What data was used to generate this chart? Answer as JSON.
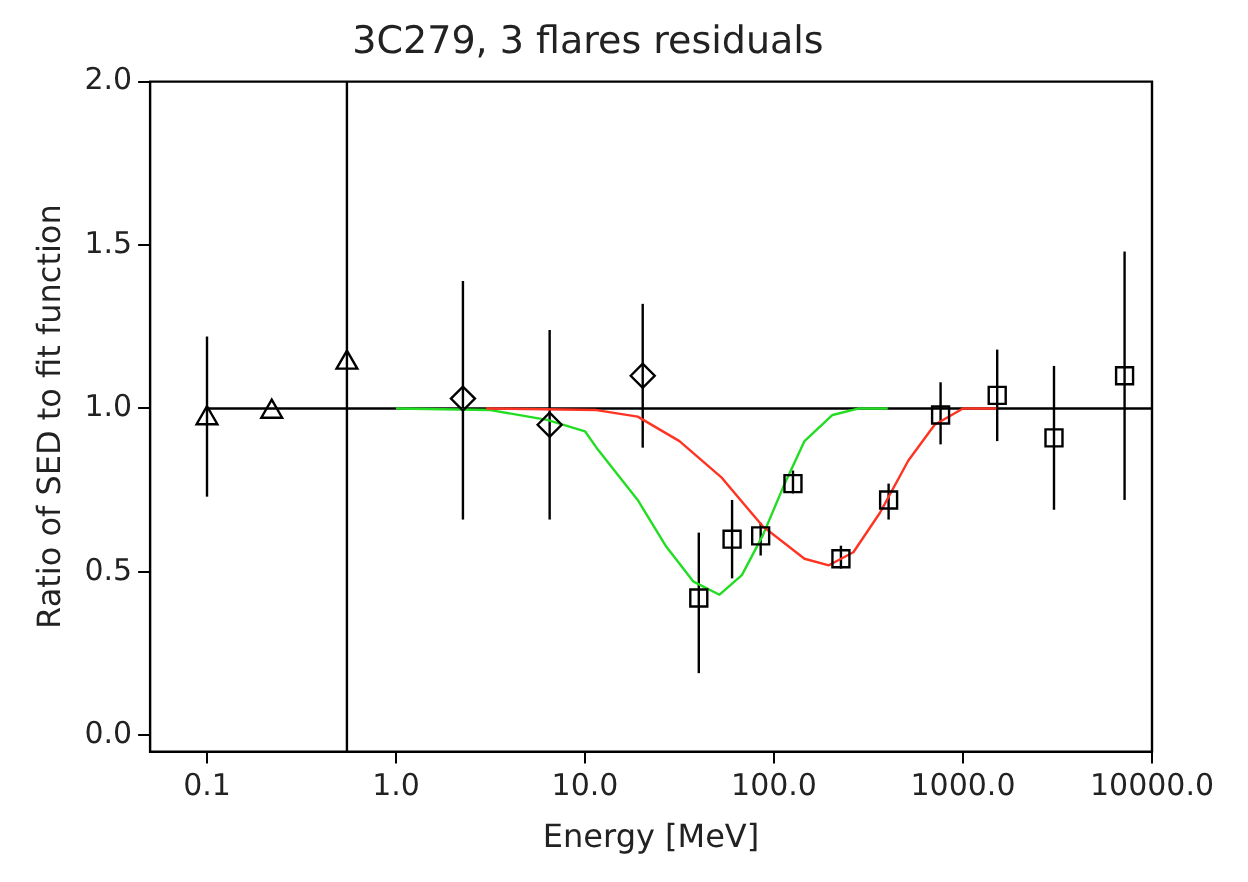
{
  "chart_data": {
    "type": "scatter",
    "title": "3C279, 3 flares residuals",
    "xlabel": "Energy [MeV]",
    "ylabel": "Ratio of SED to fit function",
    "log": "x",
    "grid": false,
    "legend": false,
    "xlim": [
      0.05,
      10000
    ],
    "xticks": [
      0.1,
      {
        "value": 1,
        "label": "1.0"
      },
      {
        "value": 10,
        "label": "10.0"
      },
      {
        "value": 100,
        "label": "100.0"
      },
      {
        "value": 1000,
        "label": "1000.0"
      },
      {
        "value": 10000,
        "label": "10000.0"
      }
    ],
    "ylim": [
      -0.05,
      2.0
    ],
    "yticks": [
      {
        "value": 0,
        "label": "0.0"
      },
      0.5,
      {
        "value": 1,
        "label": "1.0"
      },
      1.5,
      {
        "value": 2,
        "label": "2.0"
      }
    ],
    "series": [
      {
        "type": "line",
        "color": "#000000",
        "marker": "none",
        "line_style": "solid",
        "x": [
          0.1,
          10000
        ],
        "values": [
          1.0,
          1.0
        ]
      },
      {
        "type": "line",
        "color": "#22dd22",
        "marker": "none",
        "line_style": "solid",
        "x": [
          1,
          3.16,
          6.3,
          10,
          11.5,
          19,
          26.7,
          37.5,
          51.5,
          67.6,
          87,
          112,
          145,
          204,
          282,
          400
        ],
        "values": [
          1.0,
          0.995,
          0.965,
          0.93,
          0.88,
          0.72,
          0.58,
          0.47,
          0.43,
          0.49,
          0.61,
          0.76,
          0.9,
          0.98,
          1.0,
          1.0
        ]
      },
      {
        "type": "line",
        "color": "#ff3322",
        "marker": "none",
        "line_style": "solid",
        "x": [
          3,
          11.5,
          19,
          31.6,
          52.5,
          87,
          145,
          195,
          263,
          363,
          513,
          708,
          1000,
          1500
        ],
        "values": [
          1.0,
          0.995,
          0.975,
          0.9,
          0.79,
          0.64,
          0.54,
          0.52,
          0.56,
          0.68,
          0.84,
          0.95,
          1.0,
          1.0
        ]
      },
      {
        "type": "scatter",
        "color": "#000000",
        "marker": "triangle",
        "x": [
          0.1,
          0.22,
          0.55
        ],
        "values": [
          0.97,
          0.99,
          1.14
        ],
        "errors": [
          [
            0.73,
            1.22
          ],
          null,
          [
            -0.05,
            2.0
          ]
        ]
      },
      {
        "type": "scatter",
        "color": "#000000",
        "marker": "diamond",
        "x": [
          2.26,
          6.5,
          20.2
        ],
        "values": [
          1.03,
          0.95,
          1.1
        ],
        "errors": [
          [
            0.66,
            1.39
          ],
          [
            0.66,
            1.24
          ],
          [
            0.88,
            1.32
          ]
        ]
      },
      {
        "type": "scatter",
        "color": "#000000",
        "marker": "square",
        "x": [
          40,
          60,
          85,
          126,
          226,
          404,
          761,
          1517,
          3030,
          7160
        ],
        "values": [
          0.42,
          0.6,
          0.61,
          0.77,
          0.54,
          0.72,
          0.98,
          1.04,
          0.91,
          1.1
        ],
        "errors": [
          [
            0.19,
            0.62
          ],
          [
            0.48,
            0.72
          ],
          [
            0.55,
            0.65
          ],
          [
            0.74,
            0.81
          ],
          [
            0.51,
            0.58
          ],
          [
            0.66,
            0.77
          ],
          [
            0.89,
            1.08
          ],
          [
            0.9,
            1.18
          ],
          [
            0.69,
            1.13
          ],
          [
            0.72,
            1.48
          ]
        ]
      }
    ]
  }
}
